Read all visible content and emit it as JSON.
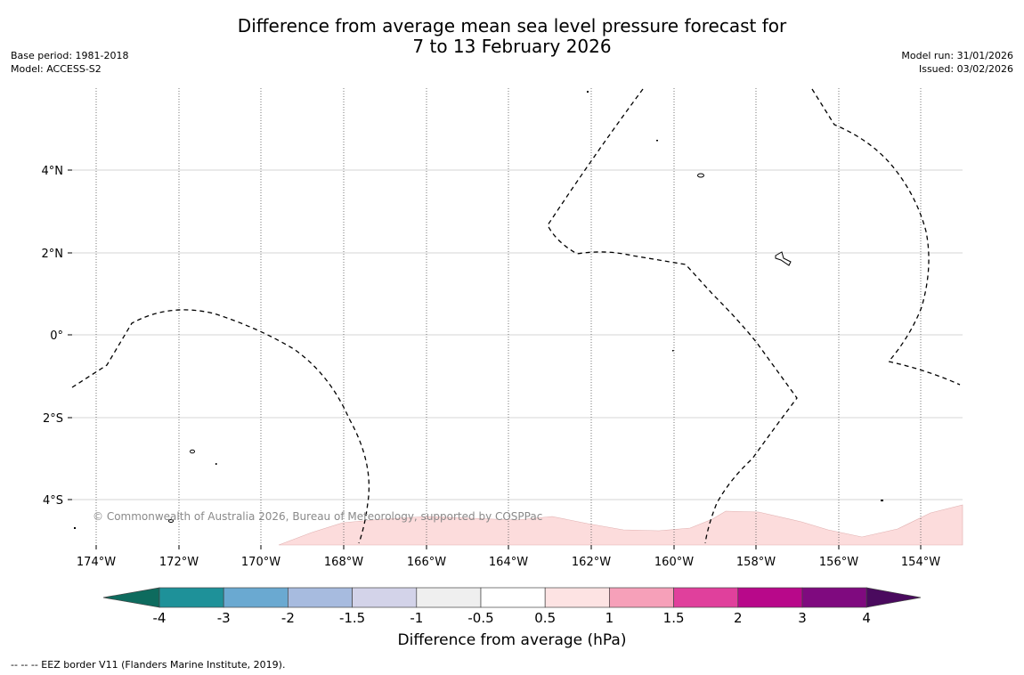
{
  "title_line1": "Difference from average mean sea level pressure forecast for",
  "title_line2": "7 to 13 February 2026",
  "base_period": "Base period: 1981-2018",
  "model": "Model: ACCESS-S2",
  "model_run": "Model run: 31/01/2026",
  "issued": "Issued: 03/02/2026",
  "copyright": "© Commonwealth of Australia 2026, Bureau of Meteorology, supported by COSPPac",
  "lat_labels": [
    "4°N",
    "2°N",
    "0°",
    "2°S",
    "4°S"
  ],
  "lon_labels": [
    "174°W",
    "172°W",
    "170°W",
    "168°W",
    "166°W",
    "164°W",
    "162°W",
    "160°W",
    "158°W",
    "156°W",
    "154°W"
  ],
  "colorbar": {
    "ticks": [
      "-4",
      "-3",
      "-2",
      "-1.5",
      "-1",
      "-0.5",
      "0.5",
      "1",
      "1.5",
      "2",
      "3",
      "4"
    ],
    "colors": [
      "#0e6b5e",
      "#1e9199",
      "#6aa9d1",
      "#a7bbdf",
      "#d3d3e9",
      "#efefef",
      "#ffffff",
      "#fde3e3",
      "#f6a0b9",
      "#e0409c",
      "#b8088a",
      "#7f0a7f",
      "#4a0a5e"
    ],
    "label": "Difference from average (hPa)"
  },
  "footnote": "--  --  -- EEZ border V11 (Flanders Marine Institute, 2019).",
  "anomaly_fill_color": "#fcdcdc"
}
